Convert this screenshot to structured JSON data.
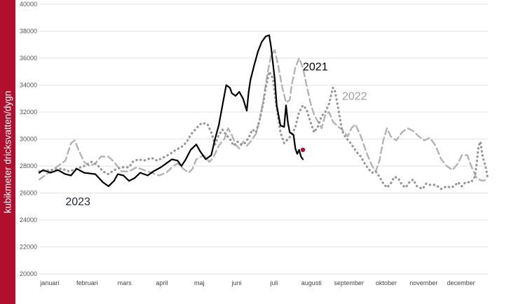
{
  "chart_data": {
    "type": "line",
    "ylabel": "kubikmeter dricksvatten/dygn",
    "ylim": [
      20000,
      40000
    ],
    "yticks": [
      20000,
      22000,
      24000,
      26000,
      28000,
      30000,
      32000,
      34000,
      36000,
      38000,
      40000
    ],
    "ytick_labels": [
      "20000",
      "22000",
      "24000",
      "26000",
      "28000",
      "30000",
      "32000",
      "34000",
      "36000",
      "38000",
      "40000"
    ],
    "xlim": [
      0,
      12
    ],
    "months": [
      "januari",
      "februari",
      "mars",
      "april",
      "maj",
      "juni",
      "juli",
      "augusti",
      "september",
      "oktober",
      "november",
      "december"
    ],
    "grid": true,
    "legend": "none",
    "colors": {
      "2023": "#000000",
      "2022": "#b3b3b3",
      "2021": "#999999",
      "highlight": "#b0102e",
      "bar": "#b0102e"
    },
    "annotations": [
      {
        "text": "2021",
        "color": "#000000",
        "x": 7.05,
        "y": 35100
      },
      {
        "text": "2022",
        "color": "#9e9e9e",
        "x": 8.1,
        "y": 32900
      },
      {
        "text": "2023",
        "color": "#1f2a44",
        "x": 0.7,
        "y": 25100
      }
    ],
    "series": [
      {
        "name": "2023",
        "style": "solid",
        "points": [
          [
            0,
            27500
          ],
          [
            0.1,
            27700
          ],
          [
            0.3,
            27500
          ],
          [
            0.5,
            27700
          ],
          [
            0.7,
            27400
          ],
          [
            0.85,
            27300
          ],
          [
            1.0,
            27800
          ],
          [
            1.2,
            27500
          ],
          [
            1.5,
            27400
          ],
          [
            1.7,
            26800
          ],
          [
            1.85,
            26500
          ],
          [
            2.0,
            26900
          ],
          [
            2.1,
            27400
          ],
          [
            2.25,
            27300
          ],
          [
            2.4,
            26900
          ],
          [
            2.55,
            27100
          ],
          [
            2.7,
            27500
          ],
          [
            2.9,
            27300
          ],
          [
            3.05,
            27600
          ],
          [
            3.25,
            27900
          ],
          [
            3.4,
            28200
          ],
          [
            3.55,
            28500
          ],
          [
            3.7,
            28400
          ],
          [
            3.8,
            28000
          ],
          [
            3.9,
            28400
          ],
          [
            4.05,
            29200
          ],
          [
            4.2,
            29600
          ],
          [
            4.3,
            29100
          ],
          [
            4.45,
            28500
          ],
          [
            4.6,
            28800
          ],
          [
            4.7,
            30000
          ],
          [
            4.8,
            31000
          ],
          [
            4.9,
            32500
          ],
          [
            5.0,
            34000
          ],
          [
            5.1,
            33800
          ],
          [
            5.15,
            33400
          ],
          [
            5.25,
            33200
          ],
          [
            5.35,
            33500
          ],
          [
            5.45,
            33000
          ],
          [
            5.55,
            32100
          ],
          [
            5.6,
            33500
          ],
          [
            5.65,
            34400
          ],
          [
            5.75,
            35500
          ],
          [
            5.85,
            36500
          ],
          [
            5.95,
            37200
          ],
          [
            6.05,
            37600
          ],
          [
            6.15,
            37700
          ],
          [
            6.2,
            36800
          ],
          [
            6.3,
            34400
          ],
          [
            6.35,
            32500
          ],
          [
            6.45,
            31000
          ],
          [
            6.55,
            30900
          ],
          [
            6.6,
            32500
          ],
          [
            6.65,
            31200
          ],
          [
            6.7,
            30500
          ],
          [
            6.8,
            30300
          ],
          [
            6.85,
            29300
          ],
          [
            6.9,
            28900
          ],
          [
            6.95,
            29200
          ],
          [
            7.0,
            28700
          ],
          [
            7.05,
            28500
          ]
        ]
      },
      {
        "name": "2022",
        "style": "dashed",
        "points": [
          [
            0,
            27000
          ],
          [
            0.2,
            27400
          ],
          [
            0.5,
            28000
          ],
          [
            0.7,
            28400
          ],
          [
            0.85,
            29700
          ],
          [
            0.95,
            29900
          ],
          [
            1.05,
            29200
          ],
          [
            1.2,
            28300
          ],
          [
            1.35,
            28000
          ],
          [
            1.5,
            28200
          ],
          [
            1.65,
            28700
          ],
          [
            1.85,
            28700
          ],
          [
            2.0,
            28300
          ],
          [
            2.2,
            27600
          ],
          [
            2.4,
            27600
          ],
          [
            2.6,
            27900
          ],
          [
            2.8,
            27700
          ],
          [
            3.0,
            27500
          ],
          [
            3.2,
            27300
          ],
          [
            3.4,
            27500
          ],
          [
            3.55,
            27900
          ],
          [
            3.7,
            28200
          ],
          [
            3.85,
            27800
          ],
          [
            4.0,
            27500
          ],
          [
            4.1,
            27800
          ],
          [
            4.2,
            28500
          ],
          [
            4.4,
            28800
          ],
          [
            4.55,
            28300
          ],
          [
            4.65,
            28600
          ],
          [
            4.8,
            29500
          ],
          [
            4.95,
            30000
          ],
          [
            5.05,
            30800
          ],
          [
            5.15,
            30300
          ],
          [
            5.25,
            29600
          ],
          [
            5.35,
            29300
          ],
          [
            5.45,
            29800
          ],
          [
            5.55,
            29500
          ],
          [
            5.65,
            29800
          ],
          [
            5.8,
            30400
          ],
          [
            5.9,
            31500
          ],
          [
            6.0,
            33000
          ],
          [
            6.1,
            34800
          ],
          [
            6.2,
            36200
          ],
          [
            6.3,
            36600
          ],
          [
            6.4,
            35300
          ],
          [
            6.5,
            33800
          ],
          [
            6.6,
            32700
          ],
          [
            6.7,
            32900
          ],
          [
            6.75,
            34000
          ],
          [
            6.85,
            35300
          ],
          [
            6.95,
            36000
          ],
          [
            7.05,
            35300
          ],
          [
            7.15,
            34000
          ],
          [
            7.25,
            32700
          ],
          [
            7.35,
            31800
          ],
          [
            7.45,
            31300
          ],
          [
            7.55,
            30800
          ],
          [
            7.65,
            31800
          ],
          [
            7.75,
            32000
          ],
          [
            7.85,
            31300
          ],
          [
            8.0,
            30900
          ],
          [
            8.1,
            30700
          ],
          [
            8.25,
            30200
          ],
          [
            8.35,
            30800
          ],
          [
            8.45,
            31100
          ],
          [
            8.6,
            30200
          ],
          [
            8.75,
            29000
          ],
          [
            8.9,
            28000
          ],
          [
            9.0,
            27600
          ],
          [
            9.1,
            28400
          ],
          [
            9.2,
            29900
          ],
          [
            9.3,
            30800
          ],
          [
            9.4,
            30200
          ],
          [
            9.55,
            29900
          ],
          [
            9.7,
            30500
          ],
          [
            9.85,
            30800
          ],
          [
            10.0,
            30600
          ],
          [
            10.15,
            30200
          ],
          [
            10.3,
            29900
          ],
          [
            10.45,
            30100
          ],
          [
            10.6,
            29500
          ],
          [
            10.75,
            28500
          ],
          [
            10.9,
            28000
          ],
          [
            11.05,
            27700
          ],
          [
            11.2,
            28200
          ],
          [
            11.3,
            28800
          ],
          [
            11.45,
            28800
          ],
          [
            11.55,
            28000
          ],
          [
            11.7,
            27100
          ],
          [
            11.85,
            26900
          ],
          [
            12.0,
            27000
          ]
        ]
      },
      {
        "name": "2021",
        "style": "dotted",
        "points": [
          [
            0,
            27600
          ],
          [
            0.3,
            27700
          ],
          [
            0.6,
            27800
          ],
          [
            0.8,
            27600
          ],
          [
            1.0,
            27800
          ],
          [
            1.2,
            28000
          ],
          [
            1.4,
            28300
          ],
          [
            1.55,
            28100
          ],
          [
            1.7,
            27600
          ],
          [
            1.85,
            27400
          ],
          [
            2.0,
            27700
          ],
          [
            2.2,
            27900
          ],
          [
            2.4,
            27900
          ],
          [
            2.5,
            28300
          ],
          [
            2.65,
            28500
          ],
          [
            2.8,
            28400
          ],
          [
            3.0,
            28600
          ],
          [
            3.15,
            28400
          ],
          [
            3.3,
            28600
          ],
          [
            3.5,
            28900
          ],
          [
            3.65,
            29200
          ],
          [
            3.8,
            29400
          ],
          [
            3.95,
            29800
          ],
          [
            4.05,
            30300
          ],
          [
            4.2,
            30800
          ],
          [
            4.35,
            31200
          ],
          [
            4.5,
            31100
          ],
          [
            4.6,
            30500
          ],
          [
            4.7,
            29600
          ],
          [
            4.8,
            30300
          ],
          [
            4.9,
            30700
          ],
          [
            5.0,
            30300
          ],
          [
            5.1,
            30000
          ],
          [
            5.2,
            29500
          ],
          [
            5.3,
            29800
          ],
          [
            5.4,
            29600
          ],
          [
            5.5,
            29700
          ],
          [
            5.6,
            30100
          ],
          [
            5.7,
            30700
          ],
          [
            5.8,
            30500
          ],
          [
            5.9,
            31500
          ],
          [
            6.0,
            32800
          ],
          [
            6.05,
            33700
          ],
          [
            6.15,
            35000
          ],
          [
            6.25,
            34500
          ],
          [
            6.35,
            32300
          ],
          [
            6.45,
            30500
          ],
          [
            6.55,
            29700
          ],
          [
            6.65,
            30000
          ],
          [
            6.75,
            30300
          ],
          [
            6.85,
            30900
          ],
          [
            6.95,
            32000
          ],
          [
            7.05,
            32500
          ],
          [
            7.15,
            32200
          ],
          [
            7.25,
            31300
          ],
          [
            7.35,
            30500
          ],
          [
            7.45,
            30900
          ],
          [
            7.55,
            31700
          ],
          [
            7.65,
            32000
          ],
          [
            7.75,
            32600
          ],
          [
            7.85,
            33800
          ],
          [
            7.9,
            33700
          ],
          [
            8.0,
            32200
          ],
          [
            8.1,
            30600
          ],
          [
            8.2,
            30100
          ],
          [
            8.3,
            29800
          ],
          [
            8.4,
            29400
          ],
          [
            8.5,
            29000
          ],
          [
            8.6,
            28700
          ],
          [
            8.7,
            28200
          ],
          [
            8.8,
            27800
          ],
          [
            8.9,
            27500
          ],
          [
            9.0,
            27600
          ],
          [
            9.1,
            27200
          ],
          [
            9.2,
            26700
          ],
          [
            9.3,
            26400
          ],
          [
            9.4,
            26700
          ],
          [
            9.5,
            27200
          ],
          [
            9.6,
            27100
          ],
          [
            9.7,
            26600
          ],
          [
            9.8,
            26400
          ],
          [
            9.9,
            26800
          ],
          [
            10.0,
            27000
          ],
          [
            10.1,
            26500
          ],
          [
            10.25,
            26300
          ],
          [
            10.35,
            26700
          ],
          [
            10.45,
            26600
          ],
          [
            10.6,
            26600
          ],
          [
            10.75,
            26300
          ],
          [
            10.9,
            26500
          ],
          [
            11.0,
            26400
          ],
          [
            11.1,
            26500
          ],
          [
            11.2,
            26800
          ],
          [
            11.3,
            26500
          ],
          [
            11.4,
            26800
          ],
          [
            11.55,
            26800
          ],
          [
            11.65,
            27200
          ],
          [
            11.7,
            28200
          ],
          [
            11.75,
            29500
          ],
          [
            11.8,
            29800
          ],
          [
            11.85,
            28800
          ],
          [
            11.95,
            27800
          ],
          [
            12.0,
            27000
          ]
        ]
      }
    ],
    "highlight_point": {
      "x": 7.05,
      "y": 29200
    }
  }
}
